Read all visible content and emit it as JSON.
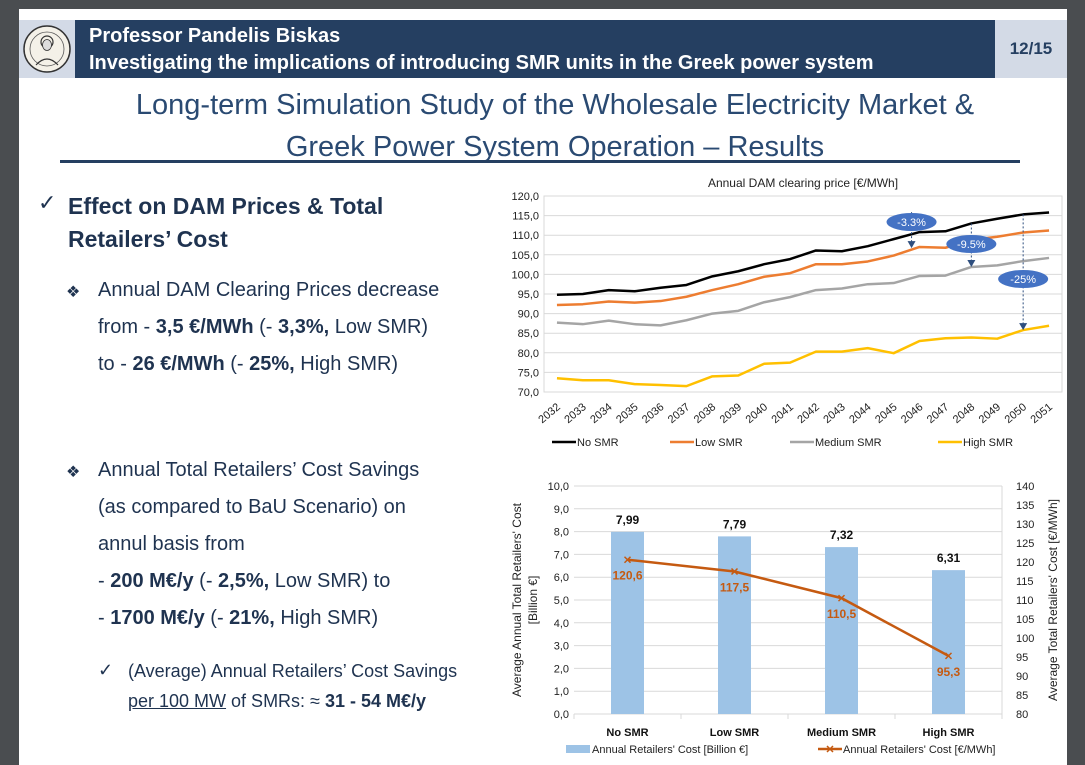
{
  "header": {
    "author": "Professor Pandelis Biskas",
    "subtitle": "Investigating the implications of introducing SMR units in the Greek power system",
    "page": "12/15",
    "logo_icon": "university-seal-icon"
  },
  "title": {
    "line1": "Long-term Simulation Study of the Wholesale Electricity Market &",
    "line2": "Greek Power System Operation – Results"
  },
  "content": {
    "check_icon": "✓",
    "diamond_icon": "❖",
    "heading": "Effect on DAM Prices & Total Retailers’ Cost",
    "b1": {
      "l1": "Annual DAM Clearing Prices decrease",
      "l2a": "from - ",
      "l2b": "3,5 €/MWh",
      "l2c": " (- ",
      "l2d": "3,3%,",
      "l2e": " Low SMR)",
      "l3a": "to - ",
      "l3b": "26 €/MWh",
      "l3c": " (- ",
      "l3d": "25%,",
      "l3e": " High SMR)"
    },
    "b2": {
      "l1": "Annual Total Retailers’ Cost Savings",
      "l2": "(as compared to BaU Scenario) on",
      "l3": "annul basis from",
      "l4a": "- ",
      "l4b": "200 M€/y",
      "l4c": " (- ",
      "l4d": "2,5%,",
      "l4e": " Low SMR) to",
      "l5a": "- ",
      "l5b": "1700 M€/y",
      "l5c": " (- ",
      "l5d": "21%,",
      "l5e": " High SMR)"
    },
    "sub": {
      "l1": "(Average) Annual Retailers’ Cost Savings",
      "l2a": "per 100 MW",
      "l2b": " of SMRs: ≈ ",
      "l2c": "31 - 54 M€/y"
    }
  },
  "chart_data": [
    {
      "type": "line",
      "title": "Annual DAM clearing price [€/MWh]",
      "xlabel": "",
      "ylabel": "",
      "ylim": [
        70,
        120
      ],
      "yticks": [
        "70,0",
        "75,0",
        "80,0",
        "85,0",
        "90,0",
        "95,0",
        "100,0",
        "105,0",
        "110,0",
        "115,0",
        "120,0"
      ],
      "grid": true,
      "legend": "bottom",
      "categories": [
        "2032",
        "2033",
        "2034",
        "2035",
        "2036",
        "2037",
        "2038",
        "2039",
        "2040",
        "2041",
        "2042",
        "2043",
        "2044",
        "2045",
        "2046",
        "2047",
        "2048",
        "2049",
        "2050",
        "2051"
      ],
      "series": [
        {
          "name": "No SMR",
          "color": "#000000",
          "values": [
            94.8,
            95.0,
            96.0,
            95.7,
            96.6,
            97.3,
            99.5,
            100.8,
            102.6,
            103.9,
            106.1,
            105.9,
            107.2,
            109.0,
            110.8,
            111.0,
            113.0,
            114.2,
            115.3,
            115.8
          ]
        },
        {
          "name": "Low SMR",
          "color": "#ed7d31",
          "values": [
            92.2,
            92.4,
            93.1,
            92.8,
            93.2,
            94.3,
            96.0,
            97.5,
            99.4,
            100.3,
            102.6,
            102.6,
            103.3,
            104.8,
            107.0,
            106.8,
            108.8,
            109.6,
            110.7,
            111.2
          ]
        },
        {
          "name": "Medium SMR",
          "color": "#a5a5a5",
          "values": [
            87.7,
            87.3,
            88.2,
            87.3,
            87.0,
            88.3,
            90.0,
            90.7,
            92.9,
            94.2,
            96.0,
            96.4,
            97.5,
            97.8,
            99.6,
            99.7,
            101.9,
            102.3,
            103.4,
            104.2
          ]
        },
        {
          "name": "High SMR",
          "color": "#ffc000",
          "values": [
            73.5,
            73.0,
            73.0,
            72.0,
            71.8,
            71.5,
            74.0,
            74.2,
            77.2,
            77.5,
            80.3,
            80.3,
            81.2,
            79.9,
            83.0,
            83.7,
            83.9,
            83.6,
            85.8,
            86.9
          ]
        }
      ],
      "annotations": [
        {
          "label": "-3.3%",
          "year": "2046"
        },
        {
          "label": "-9.5%",
          "year": "2048"
        },
        {
          "label": "-25%",
          "year": "2050"
        }
      ],
      "annotation_color": "#4472c4"
    },
    {
      "type": "bar",
      "title": "",
      "categories": [
        "No SMR",
        "Low SMR",
        "Medium SMR",
        "High SMR"
      ],
      "ylabel": "Average Annual Total Retailers' Cost [Billion €]",
      "ylim": [
        0,
        10
      ],
      "yticks": [
        "0,0",
        "1,0",
        "2,0",
        "3,0",
        "4,0",
        "5,0",
        "6,0",
        "7,0",
        "8,0",
        "9,0",
        "10,0"
      ],
      "y2label": "Average Total Retailers' Cost [€/MWh]",
      "y2lim": [
        80,
        140
      ],
      "y2ticks": [
        "80",
        "85",
        "90",
        "95",
        "100",
        "105",
        "110",
        "115",
        "120",
        "125",
        "130",
        "135",
        "140"
      ],
      "grid": true,
      "legend": "bottom",
      "series": [
        {
          "name": "Annual Retailers' Cost [Billion €]",
          "type": "bar",
          "axis": "left",
          "color": "#9dc3e6",
          "values": [
            7.99,
            7.79,
            7.32,
            6.31
          ],
          "labels": [
            "7,99",
            "7,79",
            "7,32",
            "6,31"
          ]
        },
        {
          "name": "Annual Retailers' Cost [€/MWh]",
          "type": "line",
          "axis": "right",
          "color": "#c55a11",
          "values": [
            120.6,
            117.5,
            110.5,
            95.3
          ],
          "labels": [
            "120,6",
            "117,5",
            "110,5",
            "95,3"
          ]
        }
      ]
    }
  ]
}
